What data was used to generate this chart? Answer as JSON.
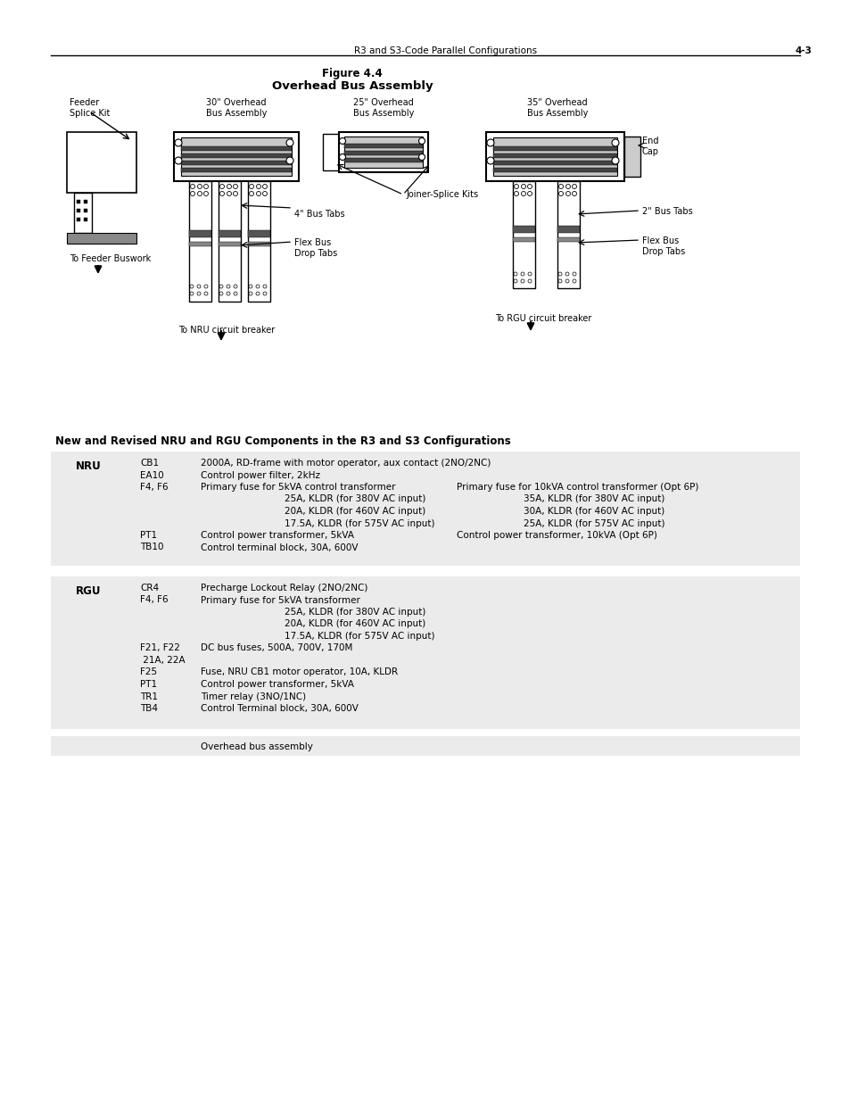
{
  "page_header_text": "R3 and S3-Code Parallel Configurations",
  "page_number": "4-3",
  "figure_title_line1": "Figure 4.4",
  "figure_title_line2": "Overhead Bus Assembly",
  "bg_color": "#ffffff",
  "gray_color": "#ebebeb",
  "section_title": "New and Revised NRU and RGU Components in the R3 and S3 Configurations",
  "nru_rows": [
    {
      "col1": "CB1",
      "col2": "2000A, RD-frame with motor operator, aux contact (2NO/2NC)",
      "col3": "",
      "indent2": false,
      "indent3": false
    },
    {
      "col1": "EA10",
      "col2": "Control power filter, 2kHz",
      "col3": "",
      "indent2": false,
      "indent3": false
    },
    {
      "col1": "F4, F6",
      "col2": "Primary fuse for 5kVA control transformer",
      "col3": "Primary fuse for 10kVA control transformer (Opt 6P)",
      "indent2": false,
      "indent3": false
    },
    {
      "col1": "",
      "col2": "25A, KLDR (for 380V AC input)",
      "col3": "35A, KLDR (for 380V AC input)",
      "indent2": true,
      "indent3": true
    },
    {
      "col1": "",
      "col2": "20A, KLDR (for 460V AC input)",
      "col3": "30A, KLDR (for 460V AC input)",
      "indent2": true,
      "indent3": true
    },
    {
      "col1": "",
      "col2": "17.5A, KLDR (for 575V AC input)",
      "col3": "25A, KLDR (for 575V AC input)",
      "indent2": true,
      "indent3": true
    },
    {
      "col1": "PT1",
      "col2": "Control power transformer, 5kVA",
      "col3": "Control power transformer, 10kVA (Opt 6P)",
      "indent2": false,
      "indent3": false
    },
    {
      "col1": "TB10",
      "col2": "Control terminal block, 30A, 600V",
      "col3": "",
      "indent2": false,
      "indent3": false
    }
  ],
  "rgu_rows": [
    {
      "col1": "CR4",
      "col2": "Precharge Lockout Relay (2NO/2NC)",
      "col3": "",
      "indent2": false
    },
    {
      "col1": "F4, F6",
      "col2": "Primary fuse for 5kVA transformer",
      "col3": "",
      "indent2": false
    },
    {
      "col1": "",
      "col2": "25A, KLDR (for 380V AC input)",
      "col3": "",
      "indent2": true
    },
    {
      "col1": "",
      "col2": "20A, KLDR (for 460V AC input)",
      "col3": "",
      "indent2": true
    },
    {
      "col1": "",
      "col2": "17.5A, KLDR (for 575V AC input)",
      "col3": "",
      "indent2": true
    },
    {
      "col1": "F21, F22",
      "col2": "DC bus fuses, 500A, 700V, 170M",
      "col3": "",
      "indent2": false
    },
    {
      "col1": " 21A, 22A",
      "col2": "",
      "col3": "",
      "indent2": false
    },
    {
      "col1": "F25",
      "col2": "Fuse, NRU CB1 motor operator, 10A, KLDR",
      "col3": "",
      "indent2": false
    },
    {
      "col1": "PT1",
      "col2": "Control power transformer, 5kVA",
      "col3": "",
      "indent2": false
    },
    {
      "col1": "TR1",
      "col2": "Timer relay (3NO/1NC)",
      "col3": "",
      "indent2": false
    },
    {
      "col1": "TB4",
      "col2": "Control Terminal block, 30A, 600V",
      "col3": "",
      "indent2": false
    }
  ],
  "overhead_row_text": "Overhead bus assembly",
  "diagram_labels": {
    "feeder_splice_kit": "Feeder\nSplice Kit",
    "bus30": "30\" Overhead\nBus Assembly",
    "bus25": "25\" Overhead\nBus Assembly",
    "bus35": "35\" Overhead\nBus Assembly",
    "end_cap": "End\nCap",
    "joiner_splice": "Joiner-Splice Kits",
    "bus_tabs_4": "4\" Bus Tabs",
    "flex_bus_drop": "Flex Bus\nDrop Tabs",
    "bus_tabs_2": "2\" Bus Tabs",
    "flex_bus_drop2": "Flex Bus\nDrop Tabs",
    "to_feeder": "To Feeder Buswork",
    "to_nru": "To NRU circuit breaker",
    "to_rgu": "To RGU circuit breaker"
  }
}
